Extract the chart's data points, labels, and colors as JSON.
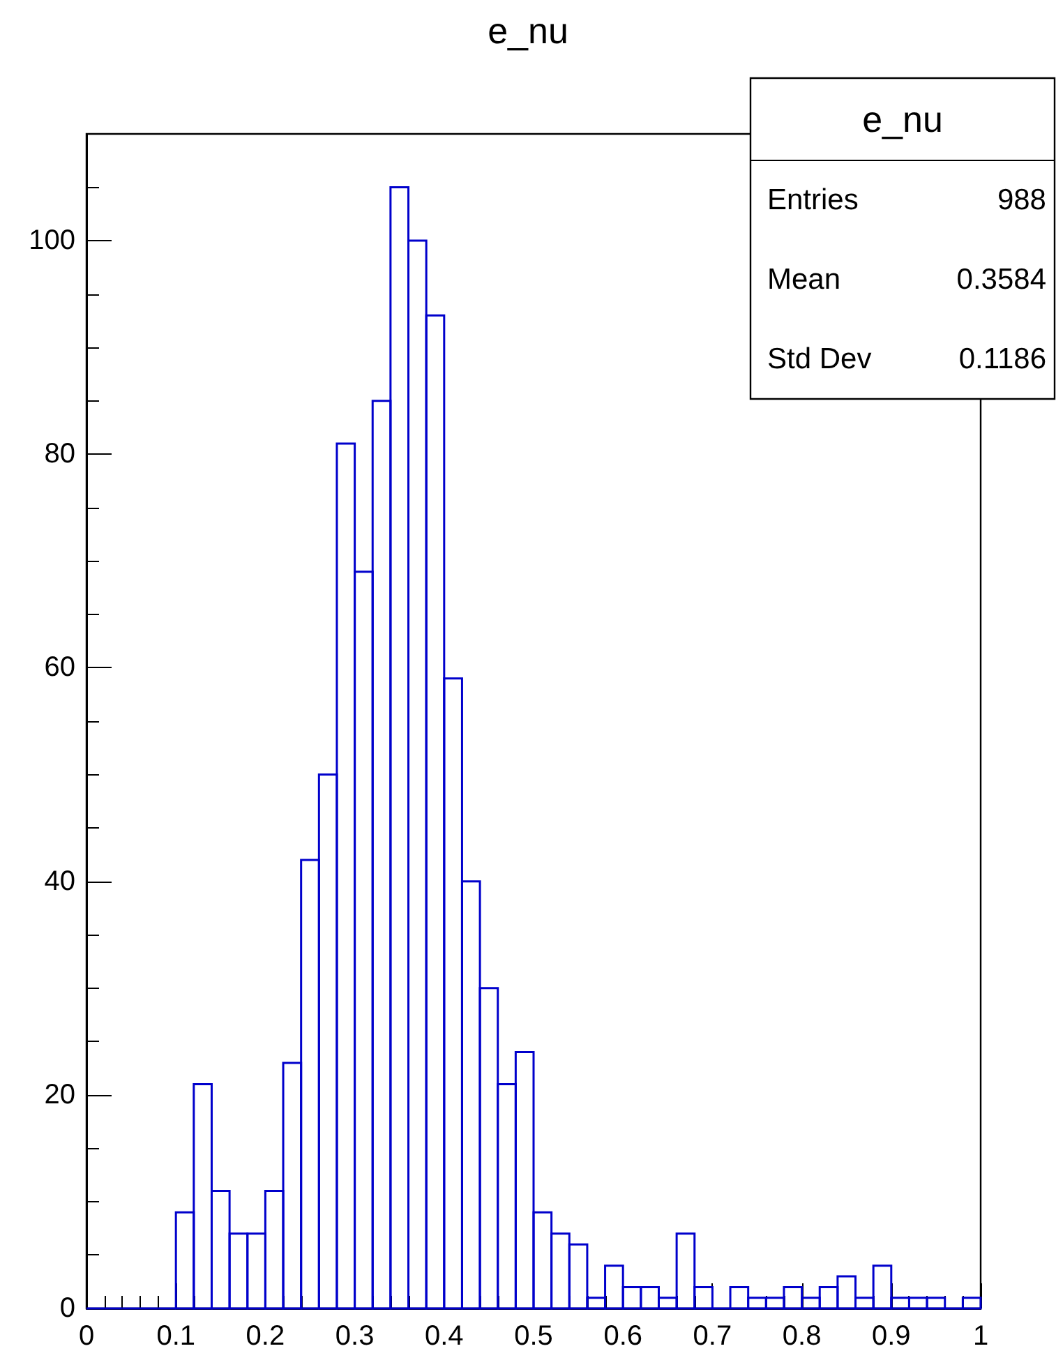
{
  "chart_data": {
    "type": "histogram",
    "title": "e_nu",
    "color": "#0000cc",
    "bins": [
      0,
      0.02,
      0.04,
      0.06,
      0.08,
      0.1,
      0.12,
      0.14,
      0.16,
      0.18,
      0.2,
      0.22,
      0.24,
      0.26,
      0.28,
      0.3,
      0.32,
      0.34,
      0.36,
      0.38,
      0.4,
      0.42,
      0.44,
      0.46,
      0.48,
      0.5,
      0.52,
      0.54,
      0.56,
      0.58,
      0.6,
      0.62,
      0.64,
      0.66,
      0.68,
      0.7,
      0.72,
      0.74,
      0.76,
      0.78,
      0.8,
      0.82,
      0.84,
      0.86,
      0.88,
      0.9,
      0.92,
      0.94,
      0.96,
      0.98,
      1
    ],
    "values": [
      0,
      0,
      0,
      0,
      0,
      9,
      21,
      11,
      7,
      7,
      11,
      23,
      42,
      50,
      81,
      69,
      85,
      105,
      100,
      93,
      59,
      40,
      30,
      21,
      24,
      9,
      7,
      6,
      1,
      4,
      2,
      2,
      1,
      7,
      2,
      0,
      2,
      1,
      1,
      2,
      1,
      2,
      3,
      1,
      4,
      1,
      1,
      1,
      0,
      1
    ],
    "xlim": [
      0,
      1
    ],
    "xticks": [
      0,
      0.1,
      0.2,
      0.3,
      0.4,
      0.5,
      0.6,
      0.7,
      0.8,
      0.9,
      1
    ],
    "ylim": [
      0,
      110
    ],
    "yticks": [
      0,
      20,
      40,
      60,
      80,
      100
    ],
    "grid": false,
    "annotations": [
      "e_nu",
      "Entries",
      "988",
      "Mean",
      "0.3584",
      "Std Dev",
      "0.1186"
    ]
  }
}
